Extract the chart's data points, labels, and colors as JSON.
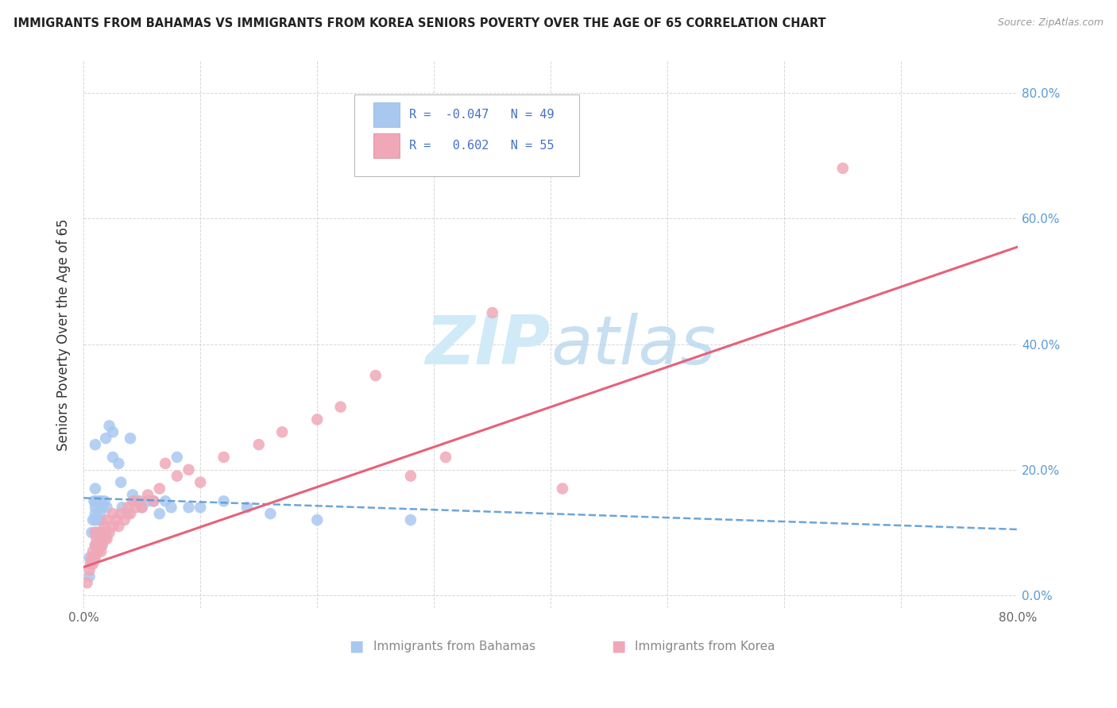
{
  "title": "IMMIGRANTS FROM BAHAMAS VS IMMIGRANTS FROM KOREA SENIORS POVERTY OVER THE AGE OF 65 CORRELATION CHART",
  "source": "Source: ZipAtlas.com",
  "ylabel": "Seniors Poverty Over the Age of 65",
  "xlim": [
    0.0,
    0.8
  ],
  "ylim": [
    -0.02,
    0.85
  ],
  "x_ticks": [
    0.0,
    0.1,
    0.2,
    0.3,
    0.4,
    0.5,
    0.6,
    0.7,
    0.8
  ],
  "x_tick_labels": [
    "0.0%",
    "",
    "",
    "",
    "",
    "",
    "",
    "",
    "80.0%"
  ],
  "y_ticks_right": [
    0.0,
    0.2,
    0.4,
    0.6,
    0.8
  ],
  "y_tick_labels_right": [
    "0.0%",
    "20.0%",
    "40.0%",
    "60.0%",
    "80.0%"
  ],
  "R_bahamas": -0.047,
  "N_bahamas": 49,
  "R_korea": 0.602,
  "N_korea": 55,
  "color_bahamas": "#a8c8f0",
  "color_korea": "#f0a8b8",
  "line_color_bahamas": "#5b9bd5",
  "line_color_korea": "#e8607a",
  "watermark_color": "#d0eaf8",
  "bahamas_x": [
    0.005,
    0.005,
    0.007,
    0.008,
    0.009,
    0.01,
    0.01,
    0.01,
    0.01,
    0.01,
    0.01,
    0.01,
    0.01,
    0.012,
    0.012,
    0.013,
    0.013,
    0.014,
    0.015,
    0.015,
    0.015,
    0.016,
    0.018,
    0.019,
    0.02,
    0.022,
    0.025,
    0.025,
    0.03,
    0.032,
    0.033,
    0.038,
    0.04,
    0.042,
    0.045,
    0.05,
    0.055,
    0.06,
    0.065,
    0.07,
    0.075,
    0.08,
    0.09,
    0.1,
    0.12,
    0.14,
    0.16,
    0.2,
    0.28
  ],
  "bahamas_y": [
    0.03,
    0.06,
    0.1,
    0.12,
    0.15,
    0.08,
    0.1,
    0.12,
    0.13,
    0.14,
    0.15,
    0.17,
    0.24,
    0.08,
    0.12,
    0.1,
    0.15,
    0.13,
    0.08,
    0.12,
    0.15,
    0.14,
    0.15,
    0.25,
    0.14,
    0.27,
    0.22,
    0.26,
    0.21,
    0.18,
    0.14,
    0.13,
    0.25,
    0.16,
    0.15,
    0.14,
    0.15,
    0.15,
    0.13,
    0.15,
    0.14,
    0.22,
    0.14,
    0.14,
    0.15,
    0.14,
    0.13,
    0.12,
    0.12
  ],
  "korea_x": [
    0.003,
    0.005,
    0.006,
    0.007,
    0.008,
    0.008,
    0.009,
    0.01,
    0.01,
    0.01,
    0.011,
    0.012,
    0.012,
    0.013,
    0.014,
    0.015,
    0.015,
    0.016,
    0.017,
    0.018,
    0.018,
    0.019,
    0.02,
    0.02,
    0.022,
    0.025,
    0.025,
    0.028,
    0.03,
    0.032,
    0.035,
    0.038,
    0.04,
    0.042,
    0.045,
    0.048,
    0.05,
    0.055,
    0.06,
    0.065,
    0.07,
    0.08,
    0.09,
    0.1,
    0.12,
    0.15,
    0.17,
    0.2,
    0.22,
    0.25,
    0.28,
    0.31,
    0.35,
    0.41,
    0.65
  ],
  "korea_y": [
    0.02,
    0.04,
    0.05,
    0.06,
    0.05,
    0.07,
    0.06,
    0.06,
    0.08,
    0.1,
    0.09,
    0.07,
    0.1,
    0.08,
    0.09,
    0.07,
    0.09,
    0.08,
    0.1,
    0.09,
    0.11,
    0.1,
    0.09,
    0.12,
    0.1,
    0.11,
    0.13,
    0.12,
    0.11,
    0.13,
    0.12,
    0.14,
    0.13,
    0.15,
    0.14,
    0.15,
    0.14,
    0.16,
    0.15,
    0.17,
    0.21,
    0.19,
    0.2,
    0.18,
    0.22,
    0.24,
    0.26,
    0.28,
    0.3,
    0.35,
    0.19,
    0.22,
    0.45,
    0.17,
    0.68
  ]
}
